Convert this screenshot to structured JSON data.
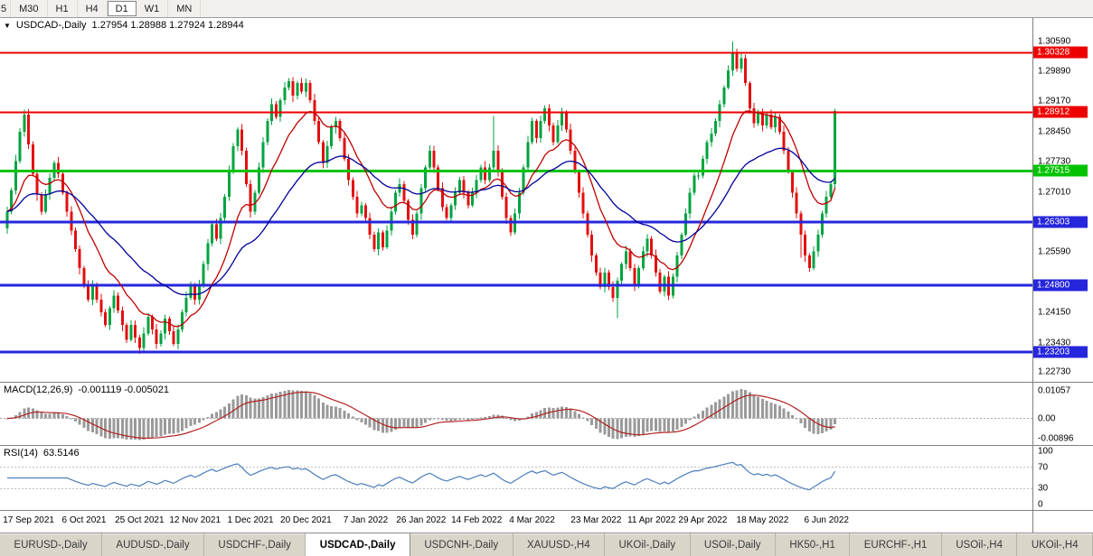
{
  "toolbar": {
    "timeframes": [
      {
        "label": "5",
        "active": false,
        "partial": true
      },
      {
        "label": "M30",
        "active": false
      },
      {
        "label": "H1",
        "active": false
      },
      {
        "label": "H4",
        "active": false
      },
      {
        "label": "D1",
        "active": true
      },
      {
        "label": "W1",
        "active": false
      },
      {
        "label": "MN",
        "active": false
      }
    ]
  },
  "chart": {
    "title": "USDCAD-,Daily",
    "ohlc": "1.27954 1.28988 1.27924 1.28944"
  },
  "indicators": {
    "macd": {
      "label": "MACD(12,26,9)",
      "values": "-0.001119 -0.005021",
      "axis": [
        {
          "text": "0.01057",
          "v": 0.01057
        },
        {
          "text": "0.00",
          "v": 0
        },
        {
          "text": "-0.00896",
          "v": -0.00896
        }
      ]
    },
    "rsi": {
      "label": "RSI(14)",
      "value": "63.5146",
      "axis": [
        {
          "text": "100",
          "v": 100
        },
        {
          "text": "70",
          "v": 70
        },
        {
          "text": "30",
          "v": 30
        },
        {
          "text": "0",
          "v": 0
        }
      ]
    }
  },
  "price_axis": {
    "ticks": [
      {
        "text": "1.30590",
        "value": 1.3059
      },
      {
        "text": "1.29890",
        "value": 1.2989
      },
      {
        "text": "1.29170",
        "value": 1.2917
      },
      {
        "text": "1.28450",
        "value": 1.2845
      },
      {
        "text": "1.27730",
        "value": 1.2773
      },
      {
        "text": "1.27010",
        "value": 1.2701
      },
      {
        "text": "1.25590",
        "value": 1.2559
      },
      {
        "text": "1.24150",
        "value": 1.2415
      },
      {
        "text": "1.23430",
        "value": 1.2343
      },
      {
        "text": "1.22730",
        "value": 1.2273
      }
    ]
  },
  "hlines": [
    {
      "label": "1.30328",
      "price": 1.30328,
      "color": "#ee0000",
      "width": 2
    },
    {
      "label": "1.28912",
      "price": 1.28912,
      "color": "#ee0000",
      "width": 2
    },
    {
      "label": "1.27515",
      "price": 1.27515,
      "color": "#00c300",
      "width": 3
    },
    {
      "label": "1.26303",
      "price": 1.26303,
      "color": "#2626dd",
      "width": 3
    },
    {
      "label": "1.24800",
      "price": 1.248,
      "color": "#2626dd",
      "width": 3
    },
    {
      "label": "1.23203",
      "price": 1.23203,
      "color": "#2626dd",
      "width": 3
    }
  ],
  "date_axis": [
    {
      "label": "17 Sep 2021",
      "i": 5
    },
    {
      "label": "6 Oct 2021",
      "i": 18
    },
    {
      "label": "25 Oct 2021",
      "i": 31
    },
    {
      "label": "12 Nov 2021",
      "i": 44
    },
    {
      "label": "1 Dec 2021",
      "i": 57
    },
    {
      "label": "20 Dec 2021",
      "i": 70
    },
    {
      "label": "7 Jan 2022",
      "i": 84
    },
    {
      "label": "26 Jan 2022",
      "i": 97
    },
    {
      "label": "14 Feb 2022",
      "i": 110
    },
    {
      "label": "4 Mar 2022",
      "i": 123
    },
    {
      "label": "23 Mar 2022",
      "i": 138
    },
    {
      "label": "11 Apr 2022",
      "i": 151
    },
    {
      "label": "29 Apr 2022",
      "i": 163
    },
    {
      "label": "18 May 2022",
      "i": 177
    },
    {
      "label": "6 Jun 2022",
      "i": 192
    }
  ],
  "tabs": [
    {
      "label": "EURUSD-,Daily",
      "active": false
    },
    {
      "label": "AUDUSD-,Daily",
      "active": false
    },
    {
      "label": "USDCHF-,Daily",
      "active": false
    },
    {
      "label": "USDCAD-,Daily",
      "active": true
    },
    {
      "label": "USDCNH-,Daily",
      "active": false
    },
    {
      "label": "XAUUSD-,H4",
      "active": false
    },
    {
      "label": "UKOil-,Daily",
      "active": false
    },
    {
      "label": "USOil-,Daily",
      "active": false
    },
    {
      "label": "HK50-,H1",
      "active": false
    },
    {
      "label": "EURCHF-,H1",
      "active": false
    },
    {
      "label": "USOil-,H4",
      "active": false
    },
    {
      "label": "UKOil-,H4",
      "active": false
    }
  ],
  "colors": {
    "candle_up": "#00a341",
    "candle_down": "#e20f0f",
    "ma_fast": "#c00000",
    "ma_slow": "#000099",
    "macd_hist": "#9a9a9a",
    "macd_signal": "#b22222",
    "rsi_line": "#4a7ebb",
    "badge_red": "#ee0000",
    "badge_green": "#00b400",
    "badge_blue": "#2626dd"
  },
  "chart_data": {
    "type": "candlestick",
    "symbol": "USDCAD",
    "timeframe": "Daily",
    "price_range": {
      "min": 1.225,
      "max": 1.3115
    },
    "ohlc_last": {
      "open": 1.27954,
      "high": 1.28988,
      "low": 1.27924,
      "close": 1.28944
    },
    "closes": [
      1.2655,
      1.2705,
      1.2775,
      1.2845,
      1.2885,
      1.2815,
      1.2745,
      1.2695,
      1.2655,
      1.2695,
      1.2735,
      1.277,
      1.2745,
      1.27,
      1.2655,
      1.261,
      1.2565,
      1.252,
      1.248,
      1.2445,
      1.248,
      1.2445,
      1.2415,
      1.2385,
      1.2425,
      1.2455,
      1.242,
      1.2385,
      1.235,
      1.2385,
      1.2355,
      1.233,
      1.2365,
      1.2405,
      1.2375,
      1.234,
      1.2365,
      1.24,
      1.237,
      1.234,
      1.2375,
      1.2415,
      1.245,
      1.248,
      1.2445,
      1.248,
      1.253,
      1.258,
      1.2625,
      1.259,
      1.264,
      1.269,
      1.275,
      1.281,
      1.285,
      1.28,
      1.272,
      1.2655,
      1.27,
      1.276,
      1.282,
      1.287,
      1.291,
      1.288,
      1.292,
      1.295,
      1.2965,
      1.293,
      1.296,
      1.294,
      1.296,
      1.292,
      1.287,
      1.282,
      1.277,
      1.281,
      1.2855,
      1.287,
      1.283,
      1.278,
      1.273,
      1.269,
      1.265,
      1.267,
      1.264,
      1.26,
      1.2565,
      1.2605,
      1.257,
      1.261,
      1.2655,
      1.27,
      1.272,
      1.268,
      1.2635,
      1.26,
      1.265,
      1.271,
      1.276,
      1.28,
      1.276,
      1.271,
      1.2665,
      1.264,
      1.267,
      1.27,
      1.273,
      1.27,
      1.267,
      1.27,
      1.273,
      1.276,
      1.273,
      1.276,
      1.28,
      1.275,
      1.269,
      1.264,
      1.2605,
      1.265,
      1.27,
      1.276,
      1.282,
      1.287,
      1.283,
      1.287,
      1.29,
      1.286,
      1.282,
      1.286,
      1.289,
      1.285,
      1.28,
      1.275,
      1.27,
      1.265,
      1.26,
      1.255,
      1.251,
      1.2475,
      1.251,
      1.2475,
      1.245,
      1.249,
      1.253,
      1.256,
      1.252,
      1.248,
      1.252,
      1.256,
      1.259,
      1.255,
      1.251,
      1.2465,
      1.25,
      1.2455,
      1.25,
      1.255,
      1.26,
      1.265,
      1.27,
      1.274,
      1.274,
      1.278,
      1.282,
      1.284,
      1.287,
      1.291,
      1.295,
      1.299,
      1.303,
      1.2995,
      1.302,
      1.296,
      1.29,
      1.2865,
      1.289,
      1.286,
      1.2885,
      1.2855,
      1.288,
      1.2845,
      1.28,
      1.275,
      1.27,
      1.265,
      1.26,
      1.255,
      1.252,
      1.256,
      1.26,
      1.265,
      1.269,
      1.272,
      1.28944
    ],
    "wick_overrides": {
      "4": {
        "h": 1.2897
      },
      "31": {
        "l": 1.2317
      },
      "114": {
        "h": 1.2882
      },
      "143": {
        "l": 1.2401
      },
      "170": {
        "h": 1.3059
      },
      "171": {
        "h": 1.3042
      },
      "186": {
        "l": 1.2545
      },
      "194": {
        "h": 1.2899
      }
    },
    "macd_range": {
      "min": -0.01,
      "max": 0.0135
    },
    "rsi_range": {
      "min": -10,
      "max": 110
    }
  }
}
